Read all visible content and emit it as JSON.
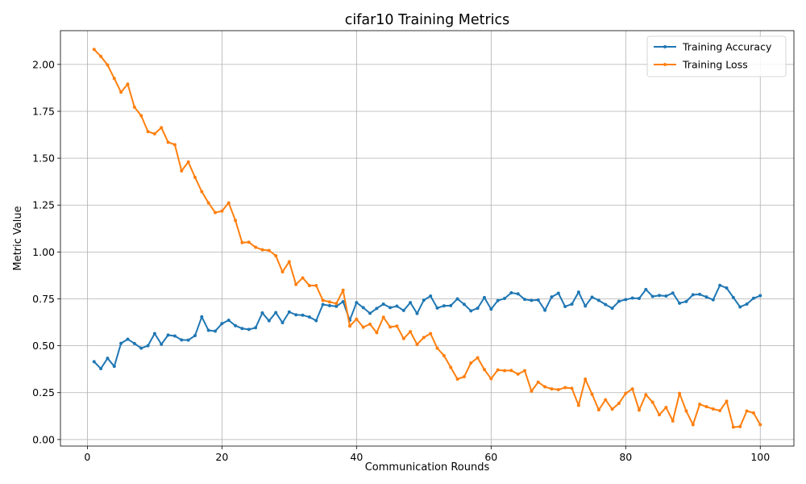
{
  "chart_data": {
    "type": "line",
    "title": "cifar10 Training Metrics",
    "xlabel": "Communication Rounds",
    "ylabel": "Metric Value",
    "xlim": [
      -4,
      105
    ],
    "ylim": [
      -0.035,
      2.18
    ],
    "xticks": [
      0,
      20,
      40,
      60,
      80,
      100
    ],
    "yticks": [
      0.0,
      0.25,
      0.5,
      0.75,
      1.0,
      1.25,
      1.5,
      1.75,
      2.0
    ],
    "ytick_labels": [
      "0.00",
      "0.25",
      "0.50",
      "0.75",
      "1.00",
      "1.25",
      "1.50",
      "1.75",
      "2.00"
    ],
    "grid": true,
    "legend_position": "top-right",
    "x": [
      1,
      2,
      3,
      4,
      5,
      6,
      7,
      8,
      9,
      10,
      11,
      12,
      13,
      14,
      15,
      16,
      17,
      18,
      19,
      20,
      21,
      22,
      23,
      24,
      25,
      26,
      27,
      28,
      29,
      30,
      31,
      32,
      33,
      34,
      35,
      36,
      37,
      38,
      39,
      40,
      41,
      42,
      43,
      44,
      45,
      46,
      47,
      48,
      49,
      50,
      51,
      52,
      53,
      54,
      55,
      56,
      57,
      58,
      59,
      60,
      61,
      62,
      63,
      64,
      65,
      66,
      67,
      68,
      69,
      70,
      71,
      72,
      73,
      74,
      75,
      76,
      77,
      78,
      79,
      80,
      81,
      82,
      83,
      84,
      85,
      86,
      87,
      88,
      89,
      90,
      91,
      92,
      93,
      94,
      95,
      96,
      97,
      98,
      99,
      100
    ],
    "series": [
      {
        "name": "Training Accuracy",
        "color": "#1f77b4",
        "values": [
          0.415,
          0.378,
          0.433,
          0.39,
          0.513,
          0.535,
          0.512,
          0.487,
          0.5,
          0.565,
          0.508,
          0.557,
          0.552,
          0.531,
          0.53,
          0.554,
          0.654,
          0.582,
          0.578,
          0.618,
          0.636,
          0.607,
          0.592,
          0.587,
          0.596,
          0.675,
          0.633,
          0.677,
          0.623,
          0.68,
          0.665,
          0.663,
          0.653,
          0.634,
          0.72,
          0.714,
          0.71,
          0.735,
          0.636,
          0.73,
          0.703,
          0.673,
          0.699,
          0.722,
          0.703,
          0.711,
          0.688,
          0.73,
          0.672,
          0.743,
          0.765,
          0.701,
          0.713,
          0.714,
          0.75,
          0.721,
          0.686,
          0.7,
          0.757,
          0.695,
          0.741,
          0.752,
          0.782,
          0.777,
          0.747,
          0.742,
          0.744,
          0.689,
          0.76,
          0.78,
          0.709,
          0.722,
          0.786,
          0.712,
          0.759,
          0.742,
          0.72,
          0.7,
          0.737,
          0.746,
          0.754,
          0.752,
          0.8,
          0.763,
          0.768,
          0.765,
          0.781,
          0.727,
          0.736,
          0.772,
          0.774,
          0.76,
          0.745,
          0.822,
          0.808,
          0.757,
          0.707,
          0.722,
          0.753,
          0.767
        ]
      },
      {
        "name": "Training Loss",
        "color": "#ff7f0e",
        "values": [
          2.08,
          2.043,
          1.997,
          1.925,
          1.852,
          1.895,
          1.772,
          1.727,
          1.642,
          1.63,
          1.663,
          1.585,
          1.572,
          1.432,
          1.48,
          1.398,
          1.322,
          1.262,
          1.21,
          1.218,
          1.262,
          1.168,
          1.05,
          1.052,
          1.025,
          1.012,
          1.008,
          0.98,
          0.894,
          0.948,
          0.827,
          0.862,
          0.821,
          0.821,
          0.742,
          0.734,
          0.725,
          0.796,
          0.605,
          0.642,
          0.599,
          0.615,
          0.57,
          0.652,
          0.6,
          0.605,
          0.538,
          0.575,
          0.507,
          0.544,
          0.565,
          0.487,
          0.447,
          0.385,
          0.322,
          0.335,
          0.408,
          0.436,
          0.373,
          0.324,
          0.371,
          0.367,
          0.368,
          0.349,
          0.367,
          0.258,
          0.306,
          0.281,
          0.27,
          0.266,
          0.277,
          0.273,
          0.182,
          0.322,
          0.242,
          0.158,
          0.212,
          0.162,
          0.193,
          0.246,
          0.27,
          0.157,
          0.239,
          0.199,
          0.132,
          0.171,
          0.099,
          0.246,
          0.152,
          0.079,
          0.188,
          0.175,
          0.163,
          0.154,
          0.204,
          0.066,
          0.069,
          0.152,
          0.142,
          0.079
        ]
      }
    ]
  }
}
